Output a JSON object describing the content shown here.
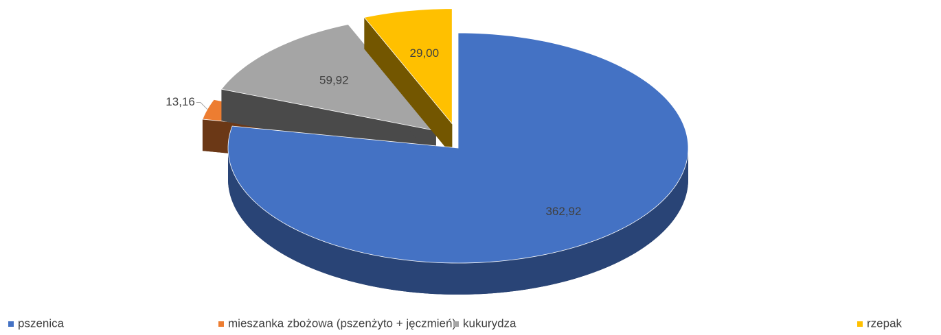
{
  "chart_data": {
    "type": "pie",
    "categories": [
      "pszenica",
      "mieszanka zbożowa (pszenżyto + jęczmień)",
      "kukurydza",
      "rzepak"
    ],
    "values": [
      362.92,
      13.16,
      59.92,
      29.0
    ],
    "value_labels": [
      "362,92",
      "13,16",
      "59,92",
      "29,00"
    ],
    "colors": [
      "#4472c4",
      "#ed7d31",
      "#a5a5a5",
      "#ffc000"
    ],
    "legend": "bottom"
  }
}
